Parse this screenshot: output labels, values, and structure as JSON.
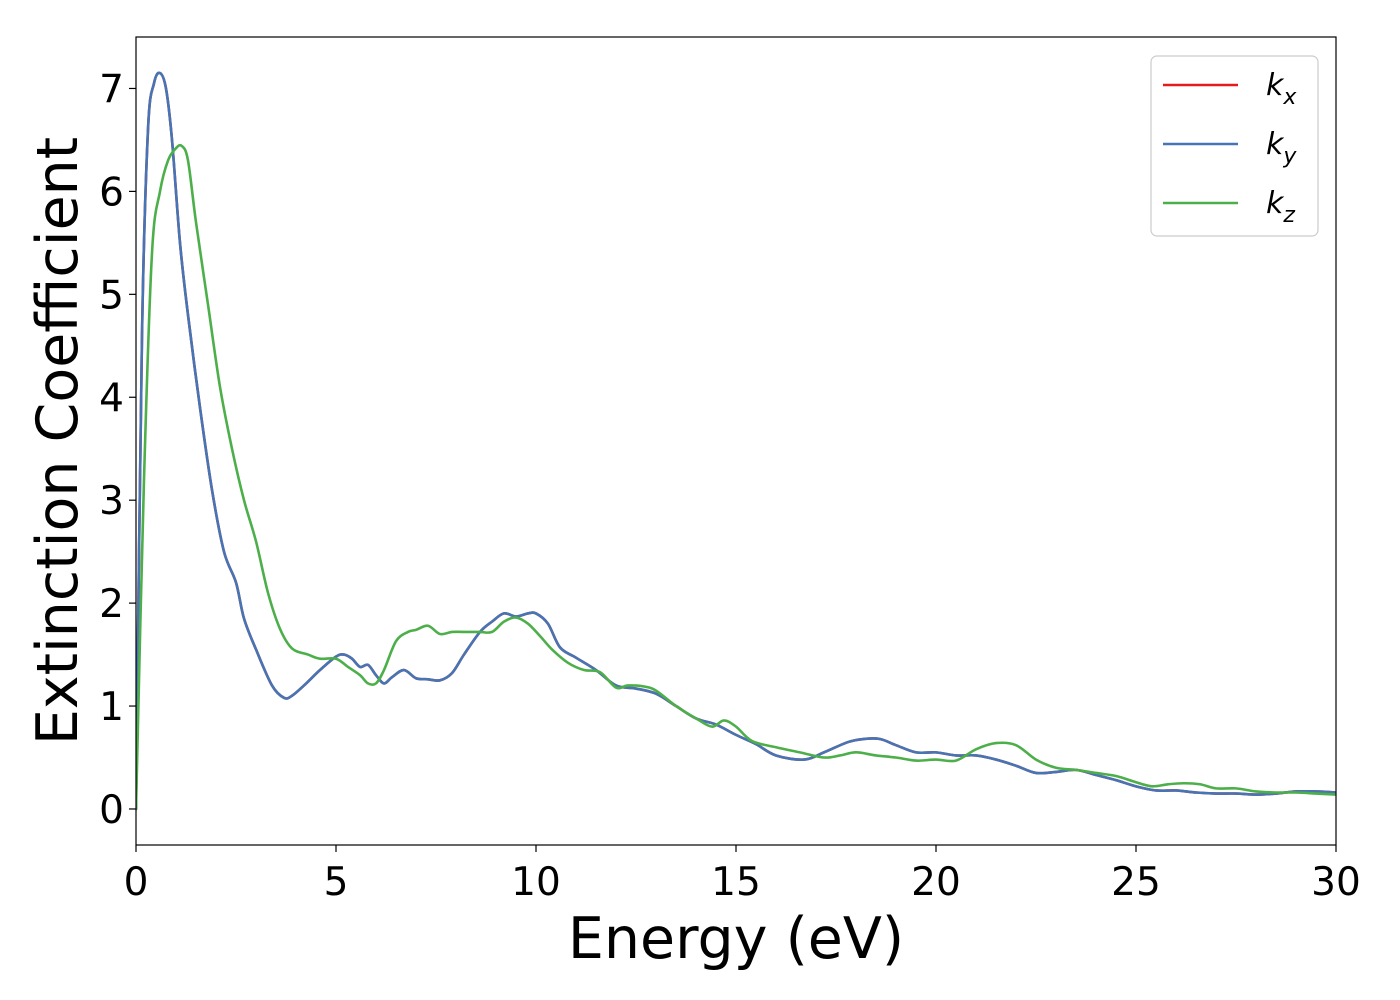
{
  "chart_data": {
    "type": "line",
    "xlabel": "Energy (eV)",
    "ylabel": "Extinction Coefficient",
    "xlim": [
      0,
      30
    ],
    "ylim": [
      -0.35,
      7.5
    ],
    "xticks": [
      "0",
      "5",
      "10",
      "15",
      "20",
      "25",
      "30"
    ],
    "yticks": [
      "0",
      "1",
      "2",
      "3",
      "4",
      "5",
      "6",
      "7"
    ],
    "grid": false,
    "legend_position": "top-right",
    "series": [
      {
        "name": "k_x",
        "label_base": "k",
        "label_sub": "x",
        "color": "#e41a1c",
        "x": [
          0,
          0.15,
          0.3,
          0.45,
          0.6,
          0.75,
          0.9,
          1.1,
          1.3,
          1.6,
          1.9,
          2.2,
          2.5,
          2.7,
          3.0,
          3.4,
          3.7,
          3.9,
          4.2,
          4.6,
          5.0,
          5.2,
          5.4,
          5.6,
          5.8,
          6.0,
          6.2,
          6.4,
          6.7,
          7.0,
          7.3,
          7.6,
          7.9,
          8.2,
          8.6,
          8.9,
          9.2,
          9.5,
          9.8,
          10.0,
          10.3,
          10.6,
          11.0,
          11.5,
          12.0,
          12.5,
          13.0,
          13.5,
          14.0,
          14.5,
          15.0,
          15.5,
          16.0,
          16.7,
          17.2,
          17.8,
          18.2,
          18.6,
          19.0,
          19.5,
          20.0,
          20.5,
          21.0,
          21.5,
          22.0,
          22.5,
          23.0,
          23.5,
          24.0,
          24.5,
          25.0,
          25.5,
          26.0,
          26.5,
          27.0,
          27.5,
          28.0,
          28.5,
          29.0,
          29.5,
          30.0
        ],
        "values": [
          0,
          4.6,
          6.6,
          7.05,
          7.15,
          7.0,
          6.5,
          5.5,
          4.8,
          3.9,
          3.1,
          2.5,
          2.2,
          1.85,
          1.55,
          1.2,
          1.08,
          1.1,
          1.2,
          1.35,
          1.48,
          1.5,
          1.46,
          1.38,
          1.4,
          1.3,
          1.22,
          1.28,
          1.35,
          1.27,
          1.26,
          1.25,
          1.32,
          1.5,
          1.72,
          1.82,
          1.9,
          1.87,
          1.9,
          1.9,
          1.8,
          1.57,
          1.47,
          1.35,
          1.2,
          1.17,
          1.12,
          1.0,
          0.88,
          0.82,
          0.72,
          0.63,
          0.52,
          0.48,
          0.55,
          0.65,
          0.68,
          0.68,
          0.62,
          0.55,
          0.55,
          0.52,
          0.52,
          0.48,
          0.42,
          0.35,
          0.36,
          0.38,
          0.33,
          0.28,
          0.22,
          0.18,
          0.18,
          0.16,
          0.15,
          0.15,
          0.14,
          0.15,
          0.17,
          0.17,
          0.16
        ]
      },
      {
        "name": "k_y",
        "label_base": "k",
        "label_sub": "y",
        "color": "#4575b4",
        "x": [
          0,
          0.15,
          0.3,
          0.45,
          0.6,
          0.75,
          0.9,
          1.1,
          1.3,
          1.6,
          1.9,
          2.2,
          2.5,
          2.7,
          3.0,
          3.4,
          3.7,
          3.9,
          4.2,
          4.6,
          5.0,
          5.2,
          5.4,
          5.6,
          5.8,
          6.0,
          6.2,
          6.4,
          6.7,
          7.0,
          7.3,
          7.6,
          7.9,
          8.2,
          8.6,
          8.9,
          9.2,
          9.5,
          9.8,
          10.0,
          10.3,
          10.6,
          11.0,
          11.5,
          12.0,
          12.5,
          13.0,
          13.5,
          14.0,
          14.5,
          15.0,
          15.5,
          16.0,
          16.7,
          17.2,
          17.8,
          18.2,
          18.6,
          19.0,
          19.5,
          20.0,
          20.5,
          21.0,
          21.5,
          22.0,
          22.5,
          23.0,
          23.5,
          24.0,
          24.5,
          25.0,
          25.5,
          26.0,
          26.5,
          27.0,
          27.5,
          28.0,
          28.5,
          29.0,
          29.5,
          30.0
        ],
        "values": [
          0,
          4.6,
          6.6,
          7.05,
          7.15,
          7.0,
          6.5,
          5.5,
          4.8,
          3.9,
          3.1,
          2.5,
          2.2,
          1.85,
          1.55,
          1.2,
          1.08,
          1.1,
          1.2,
          1.35,
          1.48,
          1.5,
          1.46,
          1.38,
          1.4,
          1.3,
          1.22,
          1.28,
          1.35,
          1.27,
          1.26,
          1.25,
          1.32,
          1.5,
          1.72,
          1.82,
          1.9,
          1.87,
          1.9,
          1.9,
          1.8,
          1.57,
          1.47,
          1.35,
          1.2,
          1.17,
          1.12,
          1.0,
          0.88,
          0.82,
          0.72,
          0.63,
          0.52,
          0.48,
          0.55,
          0.65,
          0.68,
          0.68,
          0.62,
          0.55,
          0.55,
          0.52,
          0.52,
          0.48,
          0.42,
          0.35,
          0.36,
          0.38,
          0.33,
          0.28,
          0.22,
          0.18,
          0.18,
          0.16,
          0.15,
          0.15,
          0.14,
          0.15,
          0.17,
          0.17,
          0.16
        ]
      },
      {
        "name": "k_z",
        "label_base": "k",
        "label_sub": "z",
        "color": "#4daf4a",
        "x": [
          0,
          0.2,
          0.4,
          0.6,
          0.8,
          1.0,
          1.15,
          1.3,
          1.5,
          1.8,
          2.1,
          2.4,
          2.7,
          3.0,
          3.3,
          3.6,
          3.9,
          4.3,
          4.6,
          5.0,
          5.3,
          5.6,
          5.8,
          6.0,
          6.2,
          6.5,
          6.8,
          7.0,
          7.3,
          7.6,
          7.9,
          8.2,
          8.6,
          8.9,
          9.2,
          9.5,
          9.8,
          10.1,
          10.4,
          10.8,
          11.2,
          11.6,
          12.0,
          12.3,
          12.7,
          13.0,
          13.5,
          14.0,
          14.4,
          14.7,
          15.0,
          15.4,
          16.0,
          16.6,
          17.2,
          17.6,
          18.0,
          18.5,
          19.0,
          19.5,
          20.0,
          20.5,
          21.0,
          21.5,
          22.0,
          22.5,
          23.0,
          23.5,
          24.0,
          24.5,
          25.0,
          25.4,
          25.8,
          26.2,
          26.6,
          27.0,
          27.5,
          28.0,
          28.5,
          29.0,
          29.5,
          30.0
        ],
        "values": [
          0,
          3.2,
          5.4,
          6.0,
          6.3,
          6.42,
          6.44,
          6.3,
          5.7,
          4.9,
          4.1,
          3.5,
          3.0,
          2.6,
          2.1,
          1.75,
          1.56,
          1.5,
          1.46,
          1.46,
          1.38,
          1.3,
          1.22,
          1.22,
          1.35,
          1.63,
          1.72,
          1.74,
          1.78,
          1.7,
          1.72,
          1.72,
          1.72,
          1.72,
          1.82,
          1.86,
          1.8,
          1.68,
          1.55,
          1.42,
          1.35,
          1.33,
          1.18,
          1.2,
          1.19,
          1.15,
          1.0,
          0.88,
          0.8,
          0.86,
          0.8,
          0.66,
          0.6,
          0.55,
          0.5,
          0.52,
          0.55,
          0.52,
          0.5,
          0.47,
          0.48,
          0.47,
          0.58,
          0.64,
          0.62,
          0.48,
          0.4,
          0.38,
          0.35,
          0.32,
          0.26,
          0.22,
          0.24,
          0.25,
          0.24,
          0.2,
          0.2,
          0.17,
          0.16,
          0.16,
          0.15,
          0.14
        ]
      }
    ]
  }
}
